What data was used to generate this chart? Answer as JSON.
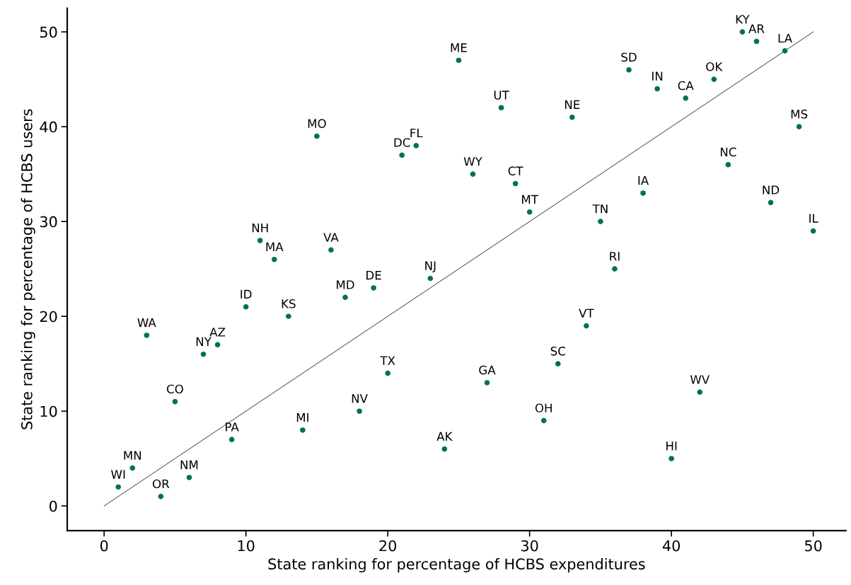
{
  "chart_data": {
    "type": "scatter",
    "xlabel": "State ranking for percentage of HCBS expenditures",
    "ylabel": "State ranking for percentage of HCBS users",
    "xlim": [
      -2.6,
      52.3
    ],
    "ylim": [
      -2.6,
      52.5
    ],
    "xticks": [
      0,
      10,
      20,
      30,
      40,
      50
    ],
    "yticks": [
      0,
      10,
      20,
      30,
      40,
      50
    ],
    "grid": false,
    "legend": false,
    "marker": "circle",
    "series": [
      {
        "color": "#00705a",
        "x": [
          1,
          2,
          4,
          6,
          9,
          5,
          3,
          7,
          8,
          10,
          11,
          12,
          13,
          14,
          15,
          16,
          17,
          18,
          19,
          20,
          21,
          22,
          23,
          24,
          25,
          26,
          27,
          28,
          29,
          30,
          31,
          32,
          33,
          34,
          35,
          36,
          37,
          38,
          39,
          40,
          41,
          42,
          43,
          44,
          45,
          46,
          47,
          48,
          49,
          50
        ],
        "values": [
          2,
          4,
          1,
          3,
          7,
          11,
          18,
          16,
          17,
          21,
          28,
          26,
          20,
          8,
          39,
          27,
          22,
          10,
          23,
          14,
          37,
          38,
          24,
          6,
          47,
          35,
          13,
          42,
          34,
          31,
          9,
          15,
          41,
          19,
          30,
          25,
          46,
          33,
          44,
          5,
          43,
          12,
          45,
          36,
          50,
          49,
          32,
          48,
          40,
          29
        ]
      },
      {
        "type": "line",
        "color": "#333333",
        "x": [
          0,
          50
        ],
        "values": [
          0,
          50
        ],
        "line_style": "solid",
        "marker": "none"
      }
    ],
    "annotations": [
      {
        "text": "WI",
        "x": 1,
        "y": 2
      },
      {
        "text": "MN",
        "x": 2,
        "y": 4
      },
      {
        "text": "OR",
        "x": 4,
        "y": 1
      },
      {
        "text": "NM",
        "x": 6,
        "y": 3
      },
      {
        "text": "PA",
        "x": 9,
        "y": 7
      },
      {
        "text": "CO",
        "x": 5,
        "y": 11
      },
      {
        "text": "WA",
        "x": 3,
        "y": 18
      },
      {
        "text": "NY",
        "x": 7,
        "y": 16
      },
      {
        "text": "AZ",
        "x": 8,
        "y": 17
      },
      {
        "text": "ID",
        "x": 10,
        "y": 21
      },
      {
        "text": "NH",
        "x": 11,
        "y": 28
      },
      {
        "text": "MA",
        "x": 12,
        "y": 26
      },
      {
        "text": "KS",
        "x": 13,
        "y": 20
      },
      {
        "text": "MI",
        "x": 14,
        "y": 8
      },
      {
        "text": "MO",
        "x": 15,
        "y": 39
      },
      {
        "text": "VA",
        "x": 16,
        "y": 27
      },
      {
        "text": "MD",
        "x": 17,
        "y": 22
      },
      {
        "text": "NV",
        "x": 18,
        "y": 10
      },
      {
        "text": "DE",
        "x": 19,
        "y": 23
      },
      {
        "text": "TX",
        "x": 20,
        "y": 14
      },
      {
        "text": "DC",
        "x": 21,
        "y": 37
      },
      {
        "text": "FL",
        "x": 22,
        "y": 38
      },
      {
        "text": "NJ",
        "x": 23,
        "y": 24
      },
      {
        "text": "AK",
        "x": 24,
        "y": 6
      },
      {
        "text": "ME",
        "x": 25,
        "y": 47
      },
      {
        "text": "WY",
        "x": 26,
        "y": 35
      },
      {
        "text": "GA",
        "x": 27,
        "y": 13
      },
      {
        "text": "UT",
        "x": 28,
        "y": 42
      },
      {
        "text": "CT",
        "x": 29,
        "y": 34
      },
      {
        "text": "MT",
        "x": 30,
        "y": 31
      },
      {
        "text": "OH",
        "x": 31,
        "y": 9
      },
      {
        "text": "SC",
        "x": 32,
        "y": 15
      },
      {
        "text": "NE",
        "x": 33,
        "y": 41
      },
      {
        "text": "VT",
        "x": 34,
        "y": 19
      },
      {
        "text": "TN",
        "x": 35,
        "y": 30
      },
      {
        "text": "RI",
        "x": 36,
        "y": 25
      },
      {
        "text": "SD",
        "x": 37,
        "y": 46
      },
      {
        "text": "IA",
        "x": 38,
        "y": 33
      },
      {
        "text": "IN",
        "x": 39,
        "y": 44
      },
      {
        "text": "HI",
        "x": 40,
        "y": 5
      },
      {
        "text": "CA",
        "x": 41,
        "y": 43
      },
      {
        "text": "WV",
        "x": 42,
        "y": 12
      },
      {
        "text": "OK",
        "x": 43,
        "y": 45
      },
      {
        "text": "NC",
        "x": 44,
        "y": 36
      },
      {
        "text": "KY",
        "x": 45,
        "y": 50
      },
      {
        "text": "AR",
        "x": 46,
        "y": 49
      },
      {
        "text": "ND",
        "x": 47,
        "y": 32
      },
      {
        "text": "LA",
        "x": 48,
        "y": 48
      },
      {
        "text": "MS",
        "x": 49,
        "y": 40
      },
      {
        "text": "IL",
        "x": 50,
        "y": 29
      }
    ]
  }
}
